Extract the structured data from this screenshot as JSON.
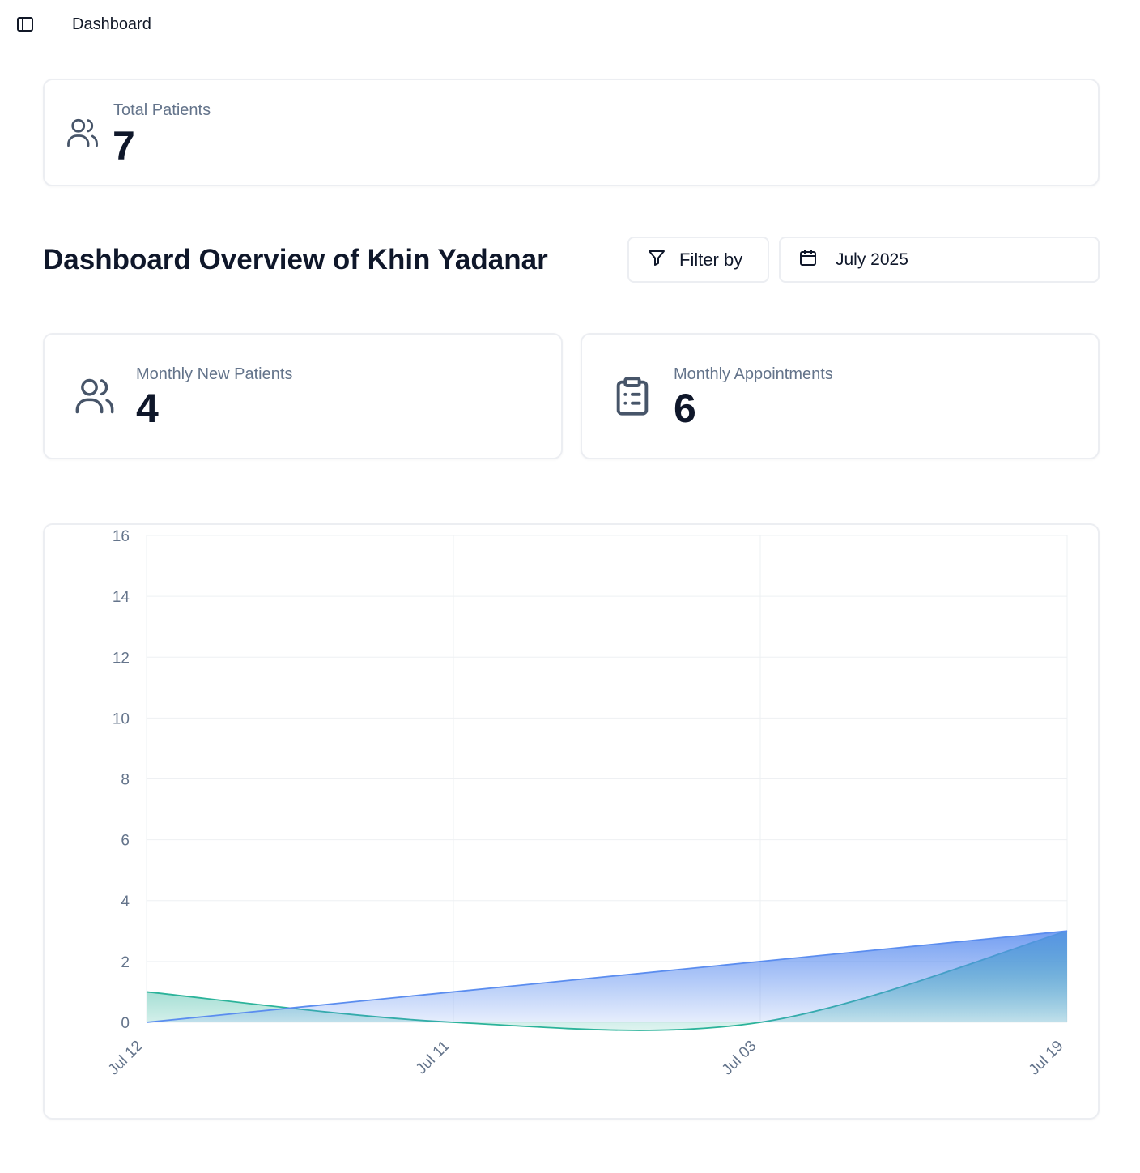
{
  "topbar": {
    "toggle_icon": "sidebar-panel-icon",
    "breadcrumb": "Dashboard"
  },
  "total_patients": {
    "icon": "users-icon",
    "label": "Total Patients",
    "value": "7"
  },
  "overview": {
    "title": "Dashboard Overview of Khin Yadanar",
    "filter_icon": "filter-icon",
    "filter_label": "Filter by",
    "date_icon": "calendar-icon",
    "date_value": "July 2025"
  },
  "monthly_new_patients": {
    "icon": "users-icon",
    "label": "Monthly New Patients",
    "value": "4"
  },
  "monthly_appointments": {
    "icon": "clipboard-list-icon",
    "label": "Monthly Appointments",
    "value": "6"
  },
  "colors": {
    "series_blue": "#5b8def",
    "series_green": "#2bb39a",
    "text_muted": "#64748b",
    "grid": "#eef0f3"
  },
  "chart_data": {
    "type": "area",
    "categories": [
      "Jul 12",
      "Jul 11",
      "Jul 03",
      "Jul 19"
    ],
    "y_ticks": [
      "0",
      "2",
      "4",
      "6",
      "8",
      "10",
      "12",
      "14",
      "16"
    ],
    "ylim": [
      0,
      16
    ],
    "grid": true,
    "series": [
      {
        "values": [
          0,
          1,
          2,
          3
        ],
        "color": "#5b8def"
      },
      {
        "values": [
          1,
          0,
          0,
          3
        ],
        "color": "#2bb39a"
      }
    ]
  }
}
